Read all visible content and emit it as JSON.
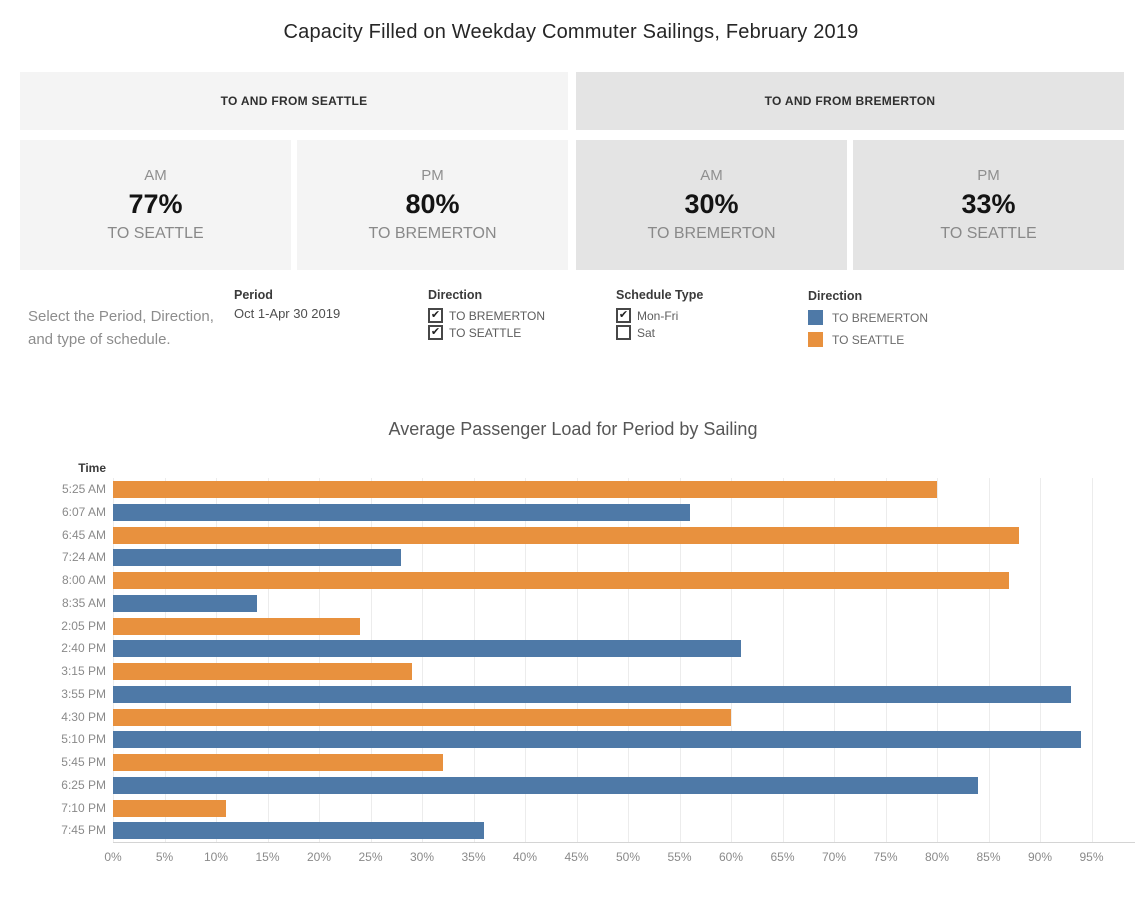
{
  "title": "Capacity Filled on Weekday Commuter Sailings, February 2019",
  "colors": {
    "to_bremerton": "#4e79a7",
    "to_seattle": "#e8913e",
    "seattle_section_bg": "#f4f4f4",
    "bremerton_section_bg": "#e4e4e4",
    "series": {
      "TO BREMERTON": "#4e79a7",
      "TO SEATTLE": "#e8913e"
    }
  },
  "sections": {
    "seattle": {
      "header": "TO AND FROM SEATTLE",
      "cards": [
        {
          "period": "AM",
          "value": "77%",
          "direction": "TO SEATTLE"
        },
        {
          "period": "PM",
          "value": "80%",
          "direction": "TO BREMERTON"
        }
      ]
    },
    "bremerton": {
      "header": "TO AND FROM BREMERTON",
      "cards": [
        {
          "period": "AM",
          "value": "30%",
          "direction": "TO BREMERTON"
        },
        {
          "period": "PM",
          "value": "33%",
          "direction": "TO SEATTLE"
        }
      ]
    }
  },
  "filters": {
    "instructions": "Select the Period, Direction, and type of schedule.",
    "period": {
      "label": "Period",
      "value": "Oct 1-Apr 30 2019"
    },
    "direction_filter": {
      "label": "Direction",
      "options": [
        {
          "label": "TO BREMERTON",
          "checked": true
        },
        {
          "label": "TO SEATTLE",
          "checked": true
        }
      ]
    },
    "schedule_type": {
      "label": "Schedule Type",
      "options": [
        {
          "label": "Mon-Fri",
          "checked": true
        },
        {
          "label": "Sat",
          "checked": false
        }
      ]
    },
    "legend": {
      "label": "Direction",
      "items": [
        {
          "label": "TO BREMERTON",
          "color": "#4e79a7"
        },
        {
          "label": "TO SEATTLE",
          "color": "#e8913e"
        }
      ]
    }
  },
  "chart_data": {
    "type": "bar",
    "orientation": "horizontal",
    "title": "Average Passenger Load for Period by Sailing",
    "ylabel": "Time",
    "xlabel": "",
    "x_axis": {
      "min": 0,
      "max": 95,
      "tick_step": 5,
      "format": "percent",
      "grid": true
    },
    "x_ticks": [
      "0%",
      "5%",
      "10%",
      "15%",
      "20%",
      "25%",
      "30%",
      "35%",
      "40%",
      "45%",
      "50%",
      "55%",
      "60%",
      "65%",
      "70%",
      "75%",
      "80%",
      "85%",
      "90%",
      "95%"
    ],
    "bars": [
      {
        "time": "5:25 AM",
        "direction": "TO SEATTLE",
        "value": 80
      },
      {
        "time": "6:07 AM",
        "direction": "TO BREMERTON",
        "value": 56
      },
      {
        "time": "6:45 AM",
        "direction": "TO SEATTLE",
        "value": 88
      },
      {
        "time": "7:24 AM",
        "direction": "TO BREMERTON",
        "value": 28
      },
      {
        "time": "8:00 AM",
        "direction": "TO SEATTLE",
        "value": 87
      },
      {
        "time": "8:35 AM",
        "direction": "TO BREMERTON",
        "value": 14
      },
      {
        "time": "2:05 PM",
        "direction": "TO SEATTLE",
        "value": 24
      },
      {
        "time": "2:40 PM",
        "direction": "TO BREMERTON",
        "value": 61
      },
      {
        "time": "3:15 PM",
        "direction": "TO SEATTLE",
        "value": 29
      },
      {
        "time": "3:55 PM",
        "direction": "TO BREMERTON",
        "value": 93
      },
      {
        "time": "4:30 PM",
        "direction": "TO SEATTLE",
        "value": 60
      },
      {
        "time": "5:10 PM",
        "direction": "TO BREMERTON",
        "value": 94
      },
      {
        "time": "5:45 PM",
        "direction": "TO SEATTLE",
        "value": 32
      },
      {
        "time": "6:25 PM",
        "direction": "TO BREMERTON",
        "value": 84
      },
      {
        "time": "7:10 PM",
        "direction": "TO SEATTLE",
        "value": 11
      },
      {
        "time": "7:45 PM",
        "direction": "TO BREMERTON",
        "value": 36
      }
    ]
  }
}
